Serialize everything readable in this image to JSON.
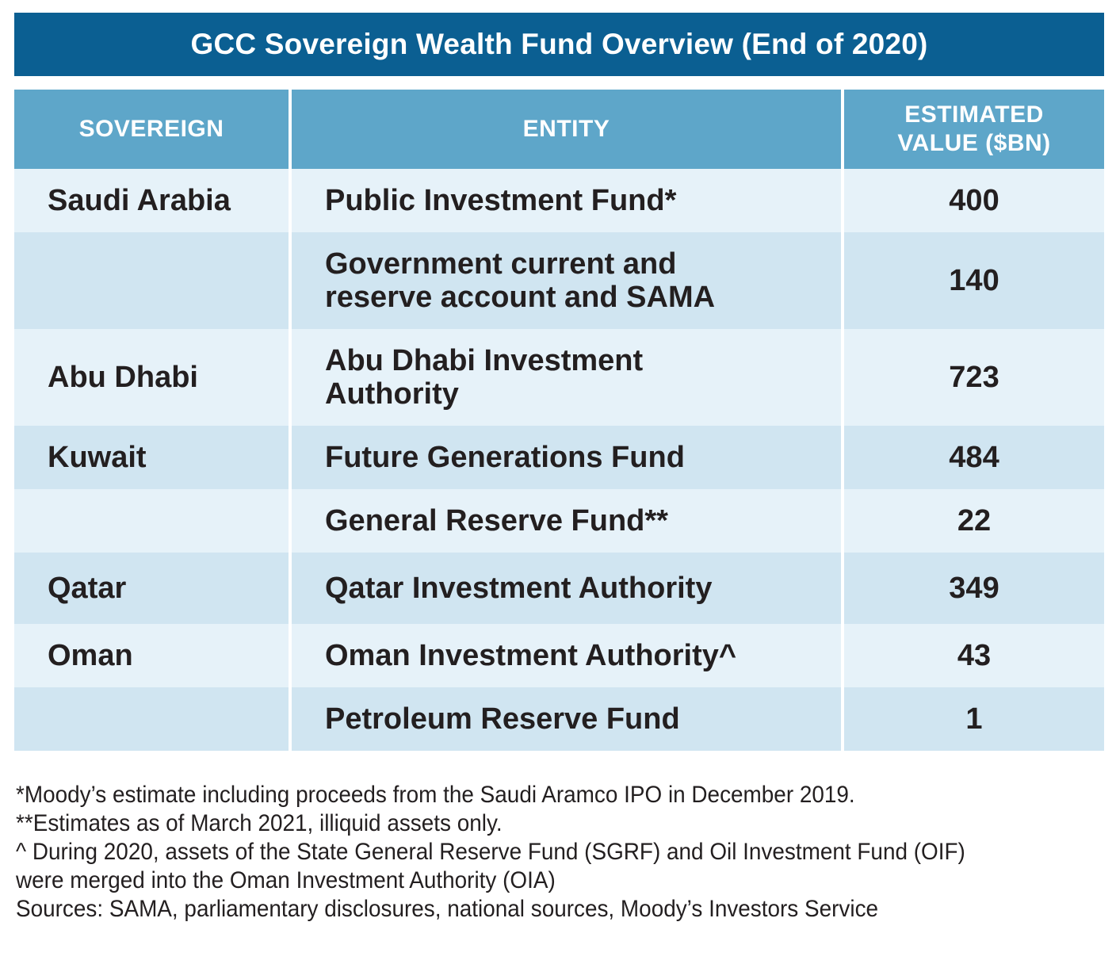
{
  "title": "GCC Sovereign Wealth Fund Overview (End of 2020)",
  "chart_data": {
    "type": "table",
    "title": "GCC Sovereign Wealth Fund Overview (End of 2020)",
    "columns": [
      "SOVEREIGN",
      "ENTITY",
      "ESTIMATED VALUE ($BN)"
    ],
    "header": {
      "sovereign": "SOVEREIGN",
      "entity": "ENTITY",
      "value_line1": "ESTIMATED",
      "value_line2": "VALUE ($BN)"
    },
    "rows": [
      {
        "sovereign": "Saudi Arabia",
        "entity": "Public Investment Fund*",
        "entity_line2": "",
        "value": "400"
      },
      {
        "sovereign": "",
        "entity": "Government current and",
        "entity_line2": "reserve account and SAMA",
        "value": "140"
      },
      {
        "sovereign": "Abu Dhabi",
        "entity": "Abu Dhabi Investment",
        "entity_line2": "Authority",
        "value": "723"
      },
      {
        "sovereign": "Kuwait",
        "entity": "Future Generations Fund",
        "entity_line2": "",
        "value": "484"
      },
      {
        "sovereign": "",
        "entity": "General Reserve Fund**",
        "entity_line2": "",
        "value": "22"
      },
      {
        "sovereign": "Qatar",
        "entity": "Qatar Investment Authority",
        "entity_line2": "",
        "value": "349"
      },
      {
        "sovereign": "Oman",
        "entity": "Oman Investment Authority^",
        "entity_line2": "",
        "value": "43"
      },
      {
        "sovereign": "",
        "entity": "Petroleum Reserve Fund",
        "entity_line2": "",
        "value": "1"
      }
    ]
  },
  "notes": {
    "note1": "*Moody’s estimate including proceeds from the Saudi Aramco IPO in December 2019.",
    "note2": "**Estimates as of March 2021, illiquid assets only.",
    "note3": "^ During 2020, assets of the State General Reserve Fund (SGRF) and Oil Investment Fund (OIF) were merged into the Oman Investment Authority (OIA)",
    "sources": "Sources: SAMA, parliamentary disclosures, national sources, Moody’s Investors Service"
  },
  "colors": {
    "title_bg": "#0b5f92",
    "header_bg": "#5ea6c9",
    "row_light": "#e6f2f9",
    "row_dark": "#d0e5f1"
  }
}
